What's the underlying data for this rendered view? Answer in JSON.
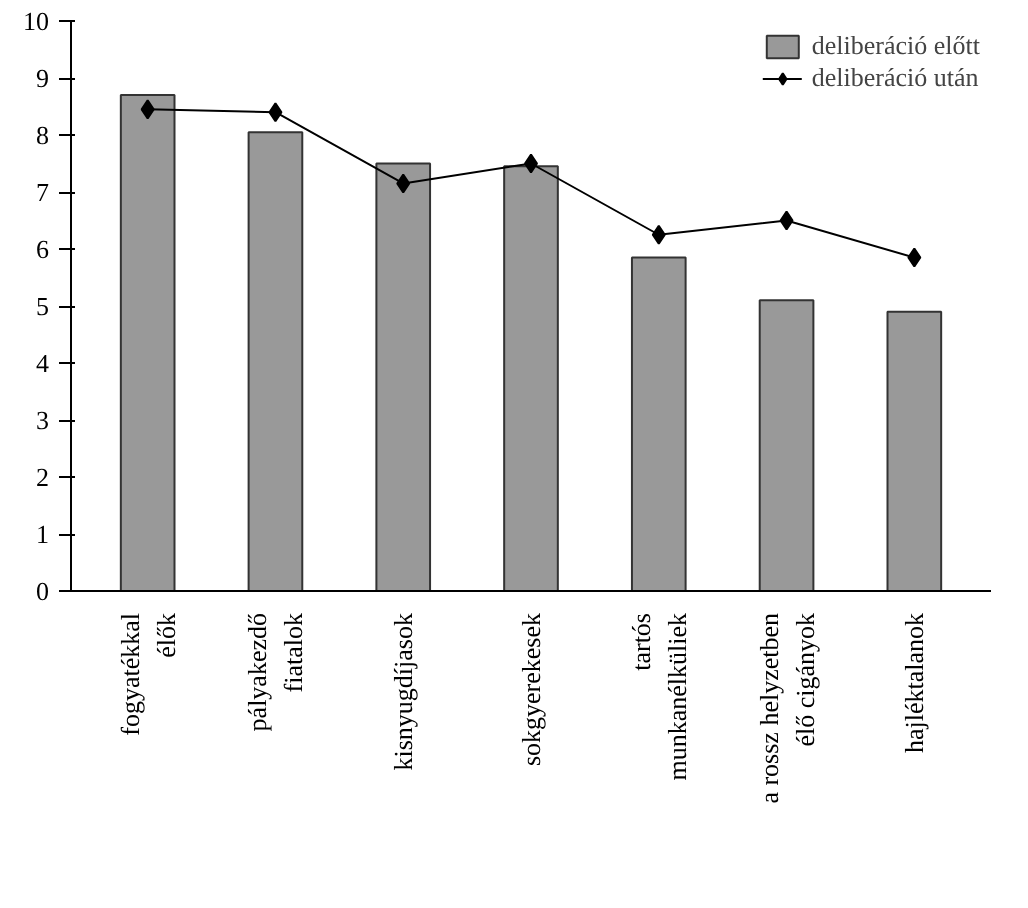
{
  "chart_data": {
    "type": "bar",
    "categories": [
      "fogyatékkal\nélők",
      "pályakezdő\nfiatalok",
      "kisnyugdíjasok",
      "sokgyerekesek",
      "tartós\nmunkanélküliek",
      "a rossz helyzetben\nélő cigányok",
      "hajléktalanok"
    ],
    "series": [
      {
        "name": "deliberáció előtt",
        "color": "#999999",
        "values": [
          8.7,
          8.05,
          7.5,
          7.45,
          5.85,
          5.1,
          4.9
        ]
      },
      {
        "name": "deliberáció után",
        "type": "line",
        "color": "#000000",
        "marker": "diamond",
        "values": [
          8.45,
          8.4,
          7.15,
          7.5,
          6.25,
          6.5,
          5.85
        ]
      }
    ],
    "ylim": [
      0,
      10
    ],
    "yticks": [
      0,
      1,
      2,
      3,
      4,
      5,
      6,
      7,
      8,
      9,
      10
    ],
    "grid": false,
    "legend": "top right"
  }
}
